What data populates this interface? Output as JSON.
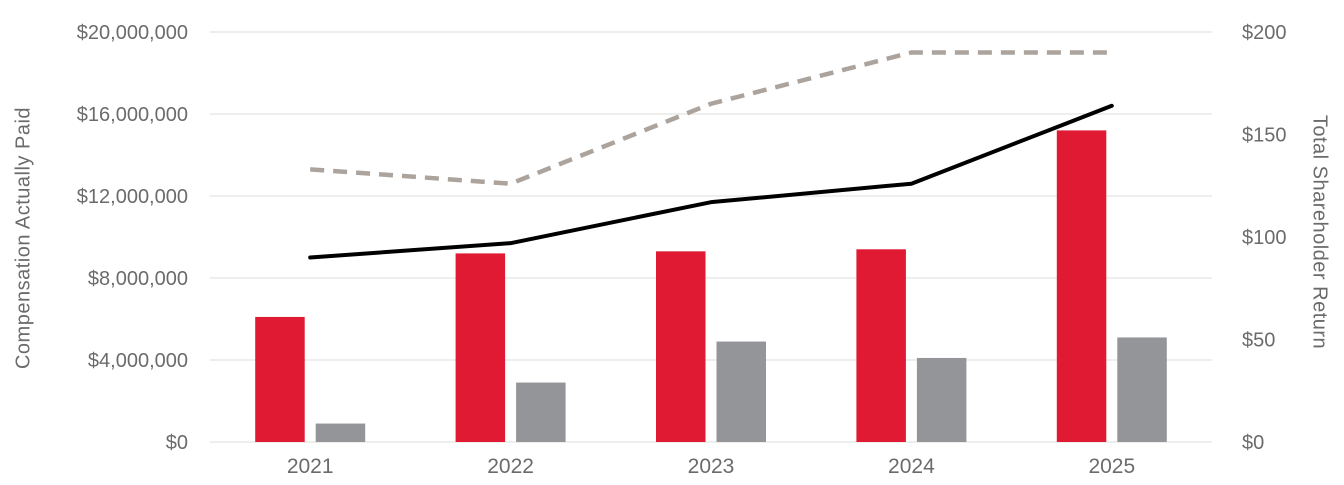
{
  "chart_data": {
    "type": "combo-bar-line",
    "title": "",
    "legend": "none",
    "grid": true,
    "categories": [
      "2021",
      "2022",
      "2023",
      "2024",
      "2025"
    ],
    "series": [
      {
        "id": "red-bar-series",
        "type": "bar",
        "axis": "left",
        "color": "#e01a33",
        "values": [
          6100000,
          9200000,
          9300000,
          9400000,
          15200000
        ]
      },
      {
        "id": "gray-bar-series",
        "type": "bar",
        "axis": "left",
        "color": "#939598",
        "values": [
          900000,
          2900000,
          4900000,
          4100000,
          5100000
        ]
      },
      {
        "id": "black-solid-line-series",
        "type": "line",
        "axis": "right",
        "color": "#000000",
        "dash": "solid",
        "values": [
          90,
          97,
          117,
          126,
          164
        ]
      },
      {
        "id": "gray-dashed-line-series",
        "type": "line",
        "axis": "right",
        "color": "#aba39c",
        "dash": "dashed",
        "values": [
          133,
          126,
          165,
          190,
          190
        ]
      }
    ],
    "left_axis": {
      "title": "Compensation Actually Paid",
      "min": 0,
      "max": 20000000,
      "ticks": [
        {
          "label": "$0",
          "value": 0
        },
        {
          "label": "$4,000,000",
          "value": 4000000
        },
        {
          "label": "$8,000,000",
          "value": 8000000
        },
        {
          "label": "$12,000,000",
          "value": 12000000
        },
        {
          "label": "$16,000,000",
          "value": 16000000
        },
        {
          "label": "$20,000,000",
          "value": 20000000
        }
      ]
    },
    "right_axis": {
      "title": "Total Shareholder Return",
      "min": 0,
      "max": 200,
      "ticks": [
        {
          "label": "$0",
          "value": 0
        },
        {
          "label": "$50",
          "value": 50
        },
        {
          "label": "$100",
          "value": 100
        },
        {
          "label": "$150",
          "value": 150
        },
        {
          "label": "$200",
          "value": 200
        }
      ]
    }
  },
  "colors": {
    "background": "#ffffff",
    "gridline": "#e9e8e7",
    "tick_text": "#6b6b6b"
  }
}
